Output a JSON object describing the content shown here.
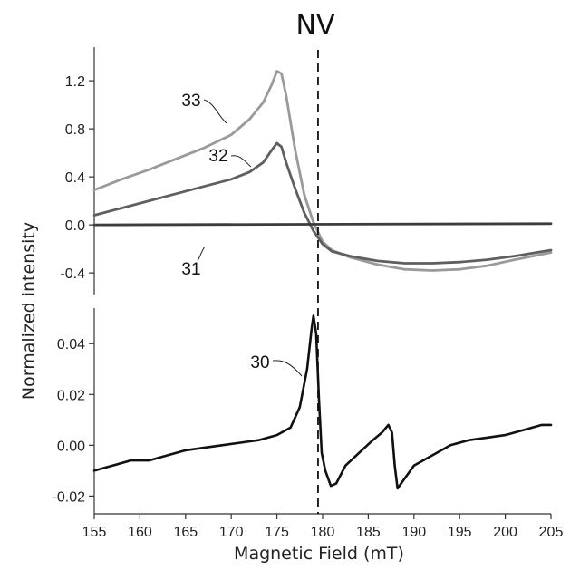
{
  "chart_data": {
    "type": "line",
    "title": "NV",
    "xlabel": "Magnetic Field (mT)",
    "ylabel": "Normalized intensity",
    "xlim": [
      155,
      205
    ],
    "x_ticks": [
      "155",
      "160",
      "165",
      "170",
      "175",
      "180",
      "185",
      "190",
      "195",
      "200",
      "205"
    ],
    "marker_line_x": 179.5,
    "grid": false,
    "panels": [
      {
        "name": "top",
        "ylim": [
          -0.58,
          1.48
        ],
        "y_ticks": [
          "1.2",
          "0.8",
          "0.4",
          "0.0",
          "-0.4"
        ],
        "series": [
          {
            "label": "33",
            "color": "#9a9a9a",
            "points": [
              [
                155,
                0.29
              ],
              [
                158,
                0.38
              ],
              [
                161,
                0.46
              ],
              [
                164,
                0.55
              ],
              [
                167,
                0.64
              ],
              [
                170,
                0.75
              ],
              [
                172,
                0.88
              ],
              [
                173.5,
                1.02
              ],
              [
                174.5,
                1.18
              ],
              [
                175,
                1.28
              ],
              [
                175.5,
                1.26
              ],
              [
                176,
                1.08
              ],
              [
                177,
                0.62
              ],
              [
                178,
                0.25
              ],
              [
                179,
                0.02
              ],
              [
                180,
                -0.14
              ],
              [
                181,
                -0.21
              ],
              [
                183,
                -0.27
              ],
              [
                186,
                -0.33
              ],
              [
                189,
                -0.37
              ],
              [
                192,
                -0.38
              ],
              [
                195,
                -0.37
              ],
              [
                198,
                -0.34
              ],
              [
                201,
                -0.29
              ],
              [
                205,
                -0.23
              ]
            ]
          },
          {
            "label": "32",
            "color": "#5f5f5f",
            "points": [
              [
                155,
                0.08
              ],
              [
                158,
                0.14
              ],
              [
                161,
                0.2
              ],
              [
                164,
                0.26
              ],
              [
                167,
                0.32
              ],
              [
                170,
                0.38
              ],
              [
                172,
                0.44
              ],
              [
                173.5,
                0.52
              ],
              [
                174.5,
                0.63
              ],
              [
                175,
                0.68
              ],
              [
                175.5,
                0.65
              ],
              [
                176,
                0.52
              ],
              [
                177,
                0.3
              ],
              [
                178,
                0.1
              ],
              [
                179,
                -0.05
              ],
              [
                180,
                -0.16
              ],
              [
                181,
                -0.22
              ],
              [
                183,
                -0.26
              ],
              [
                186,
                -0.3
              ],
              [
                189,
                -0.32
              ],
              [
                192,
                -0.32
              ],
              [
                195,
                -0.31
              ],
              [
                198,
                -0.29
              ],
              [
                201,
                -0.26
              ],
              [
                205,
                -0.21
              ]
            ]
          },
          {
            "label": "31",
            "color": "#3c3c3c",
            "points": [
              [
                155,
                0.0
              ],
              [
                205,
                0.01
              ]
            ]
          }
        ]
      },
      {
        "name": "bottom",
        "ylim": [
          -0.027,
          0.054
        ],
        "y_ticks": [
          "0.04",
          "0.02",
          "0.00",
          "-0.02"
        ],
        "series": [
          {
            "label": "30",
            "color": "#111111",
            "points": [
              [
                155,
                -0.01
              ],
              [
                157,
                -0.008
              ],
              [
                159,
                -0.006
              ],
              [
                161,
                -0.006
              ],
              [
                163,
                -0.004
              ],
              [
                165,
                -0.002
              ],
              [
                167,
                -0.001
              ],
              [
                169,
                0.0
              ],
              [
                171,
                0.001
              ],
              [
                173,
                0.002
              ],
              [
                175,
                0.004
              ],
              [
                176.5,
                0.007
              ],
              [
                177.5,
                0.015
              ],
              [
                178.3,
                0.03
              ],
              [
                178.8,
                0.046
              ],
              [
                179,
                0.051
              ],
              [
                179.3,
                0.044
              ],
              [
                179.6,
                0.018
              ],
              [
                179.9,
                -0.003
              ],
              [
                180.3,
                -0.01
              ],
              [
                180.9,
                -0.016
              ],
              [
                181.5,
                -0.015
              ],
              [
                182.5,
                -0.008
              ],
              [
                184,
                -0.003
              ],
              [
                185.5,
                0.002
              ],
              [
                186.5,
                0.005
              ],
              [
                187.2,
                0.008
              ],
              [
                187.6,
                0.005
              ],
              [
                187.9,
                -0.008
              ],
              [
                188.2,
                -0.017
              ],
              [
                188.8,
                -0.014
              ],
              [
                190,
                -0.008
              ],
              [
                192,
                -0.004
              ],
              [
                194,
                0.0
              ],
              [
                196,
                0.002
              ],
              [
                198,
                0.003
              ],
              [
                200,
                0.004
              ],
              [
                202,
                0.006
              ],
              [
                204,
                0.008
              ],
              [
                205,
                0.008
              ]
            ]
          }
        ]
      }
    ]
  }
}
